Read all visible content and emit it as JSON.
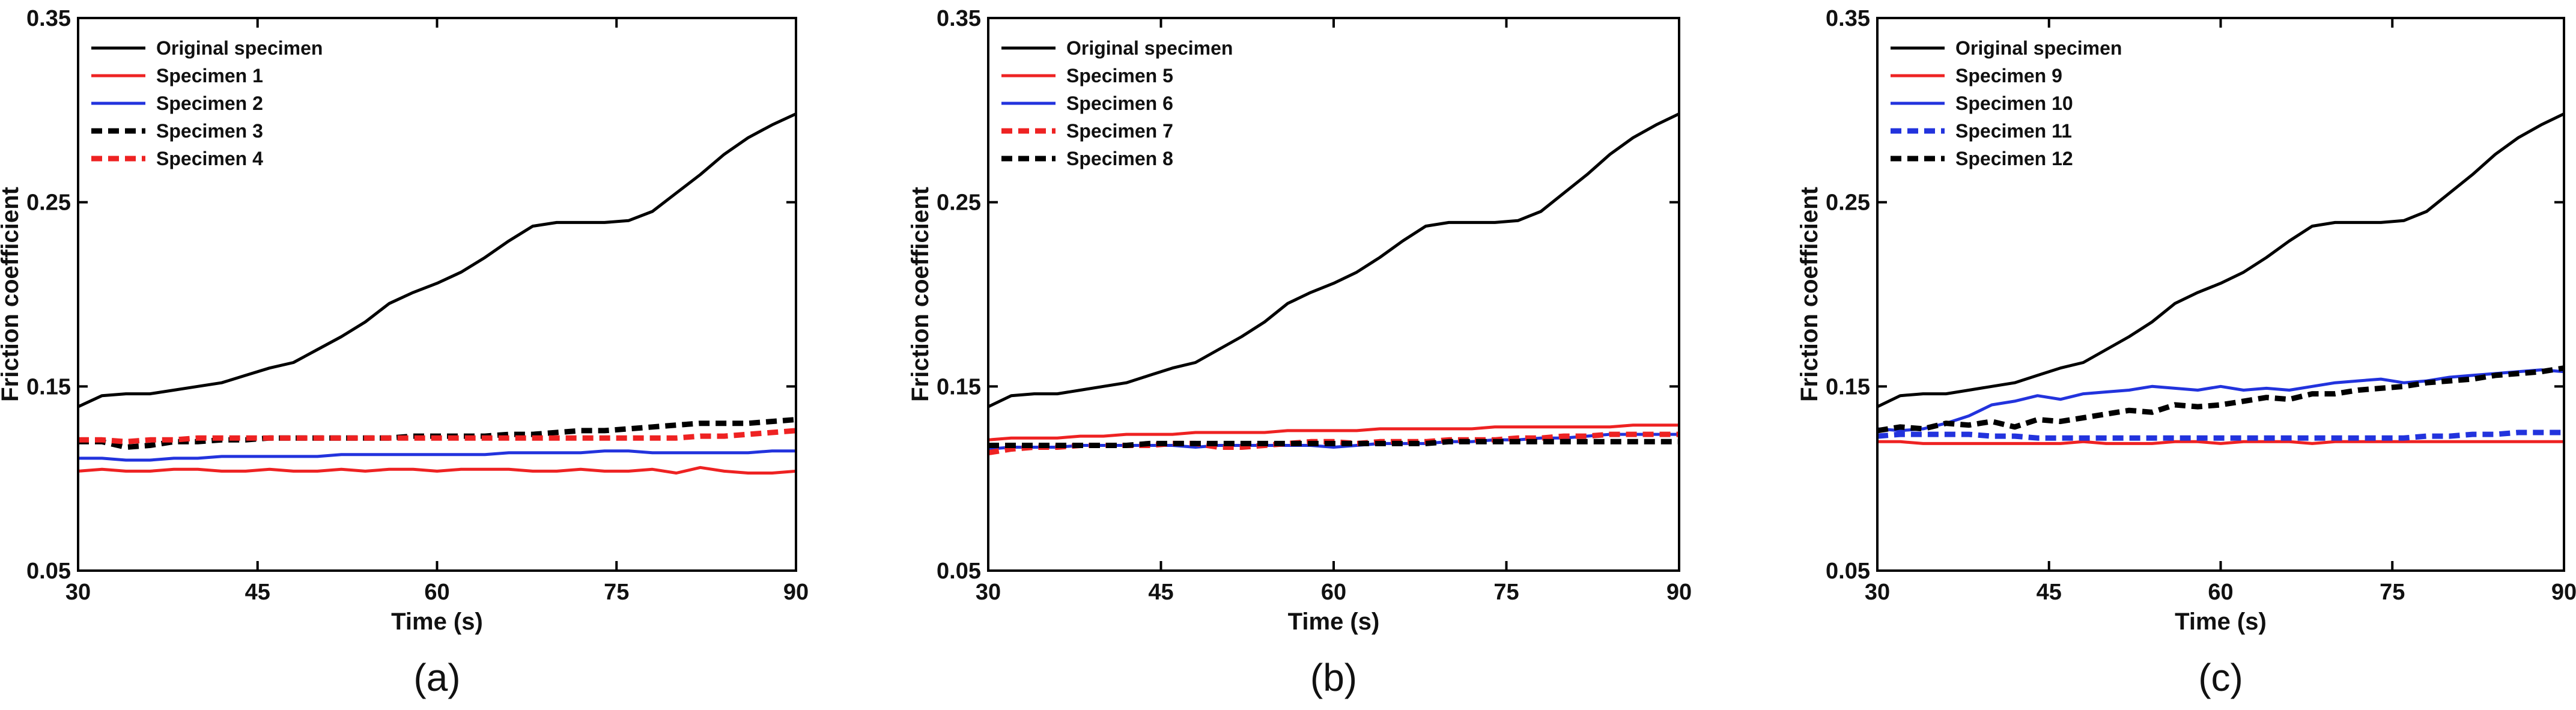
{
  "chart_data": [
    {
      "type": "line",
      "panel_label": "(a)",
      "xlabel": "Time (s)",
      "ylabel": "Friction coefficient",
      "xlim": [
        30,
        90
      ],
      "ylim": [
        0.05,
        0.35
      ],
      "xticks": [
        30,
        45,
        60,
        75,
        90
      ],
      "yticks": [
        0.05,
        0.15,
        0.25,
        0.35
      ],
      "xtick_labels": [
        "30",
        "45",
        "60",
        "75",
        "90"
      ],
      "ytick_labels": [
        "0.05",
        "0.15",
        "0.25",
        "0.35"
      ],
      "grid": false,
      "legend_position": "top-left",
      "x": [
        30,
        32,
        34,
        36,
        38,
        40,
        42,
        44,
        46,
        48,
        50,
        52,
        54,
        56,
        58,
        60,
        62,
        64,
        66,
        68,
        70,
        72,
        74,
        76,
        78,
        80,
        82,
        84,
        86,
        88,
        90
      ],
      "series": [
        {
          "name": "Original specimen",
          "color": "#000000",
          "dash": "solid",
          "values": [
            0.139,
            0.145,
            0.146,
            0.146,
            0.148,
            0.15,
            0.152,
            0.156,
            0.16,
            0.163,
            0.17,
            0.177,
            0.185,
            0.195,
            0.201,
            0.206,
            0.212,
            0.22,
            0.229,
            0.237,
            0.239,
            0.239,
            0.239,
            0.24,
            0.245,
            0.255,
            0.265,
            0.276,
            0.285,
            0.292,
            0.298
          ]
        },
        {
          "name": "Specimen 1",
          "color": "#ee2222",
          "dash": "solid",
          "values": [
            0.104,
            0.105,
            0.104,
            0.104,
            0.105,
            0.105,
            0.104,
            0.104,
            0.105,
            0.104,
            0.104,
            0.105,
            0.104,
            0.105,
            0.105,
            0.104,
            0.105,
            0.105,
            0.105,
            0.104,
            0.104,
            0.105,
            0.104,
            0.104,
            0.105,
            0.103,
            0.106,
            0.104,
            0.103,
            0.103,
            0.104
          ]
        },
        {
          "name": "Specimen 2",
          "color": "#2233dd",
          "dash": "solid",
          "values": [
            0.111,
            0.111,
            0.11,
            0.11,
            0.111,
            0.111,
            0.112,
            0.112,
            0.112,
            0.112,
            0.112,
            0.113,
            0.113,
            0.113,
            0.113,
            0.113,
            0.113,
            0.113,
            0.114,
            0.114,
            0.114,
            0.114,
            0.115,
            0.115,
            0.114,
            0.114,
            0.114,
            0.114,
            0.114,
            0.115,
            0.115
          ]
        },
        {
          "name": "Specimen 3",
          "color": "#000000",
          "dash": "dashed",
          "values": [
            0.12,
            0.12,
            0.117,
            0.118,
            0.12,
            0.12,
            0.121,
            0.121,
            0.122,
            0.122,
            0.122,
            0.122,
            0.122,
            0.122,
            0.123,
            0.123,
            0.123,
            0.123,
            0.124,
            0.124,
            0.125,
            0.126,
            0.126,
            0.127,
            0.128,
            0.129,
            0.13,
            0.13,
            0.13,
            0.131,
            0.132
          ]
        },
        {
          "name": "Specimen 4",
          "color": "#ee2222",
          "dash": "dashed",
          "values": [
            0.121,
            0.121,
            0.12,
            0.121,
            0.121,
            0.122,
            0.122,
            0.122,
            0.122,
            0.122,
            0.122,
            0.122,
            0.122,
            0.122,
            0.122,
            0.122,
            0.122,
            0.122,
            0.122,
            0.122,
            0.122,
            0.122,
            0.122,
            0.122,
            0.122,
            0.122,
            0.123,
            0.123,
            0.124,
            0.125,
            0.126
          ]
        }
      ]
    },
    {
      "type": "line",
      "panel_label": "(b)",
      "xlabel": "Time (s)",
      "ylabel": "Friction coefficient",
      "xlim": [
        30,
        90
      ],
      "ylim": [
        0.05,
        0.35
      ],
      "xticks": [
        30,
        45,
        60,
        75,
        90
      ],
      "yticks": [
        0.05,
        0.15,
        0.25,
        0.35
      ],
      "xtick_labels": [
        "30",
        "45",
        "60",
        "75",
        "90"
      ],
      "ytick_labels": [
        "0.05",
        "0.15",
        "0.25",
        "0.35"
      ],
      "grid": false,
      "legend_position": "top-left",
      "x": [
        30,
        32,
        34,
        36,
        38,
        40,
        42,
        44,
        46,
        48,
        50,
        52,
        54,
        56,
        58,
        60,
        62,
        64,
        66,
        68,
        70,
        72,
        74,
        76,
        78,
        80,
        82,
        84,
        86,
        88,
        90
      ],
      "series": [
        {
          "name": "Original specimen",
          "color": "#000000",
          "dash": "solid",
          "values": [
            0.139,
            0.145,
            0.146,
            0.146,
            0.148,
            0.15,
            0.152,
            0.156,
            0.16,
            0.163,
            0.17,
            0.177,
            0.185,
            0.195,
            0.201,
            0.206,
            0.212,
            0.22,
            0.229,
            0.237,
            0.239,
            0.239,
            0.239,
            0.24,
            0.245,
            0.255,
            0.265,
            0.276,
            0.285,
            0.292,
            0.298
          ]
        },
        {
          "name": "Specimen 5",
          "color": "#ee2222",
          "dash": "solid",
          "values": [
            0.121,
            0.122,
            0.122,
            0.122,
            0.123,
            0.123,
            0.124,
            0.124,
            0.124,
            0.125,
            0.125,
            0.125,
            0.125,
            0.126,
            0.126,
            0.126,
            0.126,
            0.127,
            0.127,
            0.127,
            0.127,
            0.127,
            0.128,
            0.128,
            0.128,
            0.128,
            0.128,
            0.128,
            0.129,
            0.129,
            0.129
          ]
        },
        {
          "name": "Specimen 6",
          "color": "#2233dd",
          "dash": "solid",
          "values": [
            0.116,
            0.117,
            0.117,
            0.117,
            0.118,
            0.118,
            0.118,
            0.118,
            0.118,
            0.117,
            0.118,
            0.118,
            0.118,
            0.118,
            0.118,
            0.117,
            0.118,
            0.119,
            0.119,
            0.119,
            0.12,
            0.12,
            0.121,
            0.121,
            0.122,
            0.122,
            0.123,
            0.124,
            0.124,
            0.124,
            0.124
          ]
        },
        {
          "name": "Specimen 7",
          "color": "#ee2222",
          "dash": "dashed",
          "values": [
            0.114,
            0.116,
            0.117,
            0.117,
            0.118,
            0.118,
            0.118,
            0.118,
            0.119,
            0.119,
            0.117,
            0.117,
            0.118,
            0.119,
            0.12,
            0.12,
            0.119,
            0.12,
            0.12,
            0.12,
            0.121,
            0.121,
            0.121,
            0.122,
            0.122,
            0.123,
            0.123,
            0.124,
            0.124,
            0.124,
            0.124
          ]
        },
        {
          "name": "Specimen 8",
          "color": "#000000",
          "dash": "dashed",
          "values": [
            0.118,
            0.118,
            0.118,
            0.118,
            0.118,
            0.118,
            0.118,
            0.119,
            0.119,
            0.119,
            0.119,
            0.119,
            0.119,
            0.119,
            0.119,
            0.119,
            0.119,
            0.119,
            0.119,
            0.119,
            0.12,
            0.12,
            0.12,
            0.12,
            0.12,
            0.12,
            0.12,
            0.12,
            0.12,
            0.12,
            0.12
          ]
        }
      ]
    },
    {
      "type": "line",
      "panel_label": "(c)",
      "xlabel": "Time (s)",
      "ylabel": "Friction coefficient",
      "xlim": [
        30,
        90
      ],
      "ylim": [
        0.05,
        0.35
      ],
      "xticks": [
        30,
        45,
        60,
        75,
        90
      ],
      "yticks": [
        0.05,
        0.15,
        0.25,
        0.35
      ],
      "xtick_labels": [
        "30",
        "45",
        "60",
        "75",
        "90"
      ],
      "ytick_labels": [
        "0.05",
        "0.15",
        "0.25",
        "0.35"
      ],
      "grid": false,
      "legend_position": "top-left",
      "x": [
        30,
        32,
        34,
        36,
        38,
        40,
        42,
        44,
        46,
        48,
        50,
        52,
        54,
        56,
        58,
        60,
        62,
        64,
        66,
        68,
        70,
        72,
        74,
        76,
        78,
        80,
        82,
        84,
        86,
        88,
        90
      ],
      "series": [
        {
          "name": "Original specimen",
          "color": "#000000",
          "dash": "solid",
          "values": [
            0.139,
            0.145,
            0.146,
            0.146,
            0.148,
            0.15,
            0.152,
            0.156,
            0.16,
            0.163,
            0.17,
            0.177,
            0.185,
            0.195,
            0.201,
            0.206,
            0.212,
            0.22,
            0.229,
            0.237,
            0.239,
            0.239,
            0.239,
            0.24,
            0.245,
            0.255,
            0.265,
            0.276,
            0.285,
            0.292,
            0.298
          ]
        },
        {
          "name": "Specimen 9",
          "color": "#ee2222",
          "dash": "solid",
          "values": [
            0.12,
            0.12,
            0.119,
            0.119,
            0.119,
            0.119,
            0.119,
            0.119,
            0.119,
            0.12,
            0.119,
            0.119,
            0.119,
            0.12,
            0.12,
            0.119,
            0.12,
            0.12,
            0.12,
            0.119,
            0.12,
            0.12,
            0.12,
            0.12,
            0.12,
            0.12,
            0.12,
            0.12,
            0.12,
            0.12,
            0.12
          ]
        },
        {
          "name": "Specimen 10",
          "color": "#2233dd",
          "dash": "solid",
          "values": [
            0.127,
            0.126,
            0.127,
            0.13,
            0.134,
            0.14,
            0.142,
            0.145,
            0.143,
            0.146,
            0.147,
            0.148,
            0.15,
            0.149,
            0.148,
            0.15,
            0.148,
            0.149,
            0.148,
            0.15,
            0.152,
            0.153,
            0.154,
            0.152,
            0.153,
            0.155,
            0.156,
            0.157,
            0.158,
            0.159,
            0.158
          ]
        },
        {
          "name": "Specimen 11",
          "color": "#2233dd",
          "dash": "dashed",
          "values": [
            0.123,
            0.124,
            0.124,
            0.124,
            0.124,
            0.123,
            0.123,
            0.122,
            0.122,
            0.122,
            0.122,
            0.122,
            0.122,
            0.122,
            0.122,
            0.122,
            0.122,
            0.122,
            0.122,
            0.122,
            0.122,
            0.122,
            0.122,
            0.122,
            0.123,
            0.123,
            0.124,
            0.124,
            0.125,
            0.125,
            0.125
          ]
        },
        {
          "name": "Specimen 12",
          "color": "#000000",
          "dash": "dashed",
          "values": [
            0.126,
            0.128,
            0.127,
            0.13,
            0.129,
            0.131,
            0.128,
            0.132,
            0.131,
            0.133,
            0.135,
            0.137,
            0.136,
            0.14,
            0.139,
            0.14,
            0.142,
            0.144,
            0.143,
            0.146,
            0.146,
            0.148,
            0.149,
            0.15,
            0.152,
            0.153,
            0.154,
            0.156,
            0.157,
            0.158,
            0.16
          ]
        }
      ]
    }
  ]
}
